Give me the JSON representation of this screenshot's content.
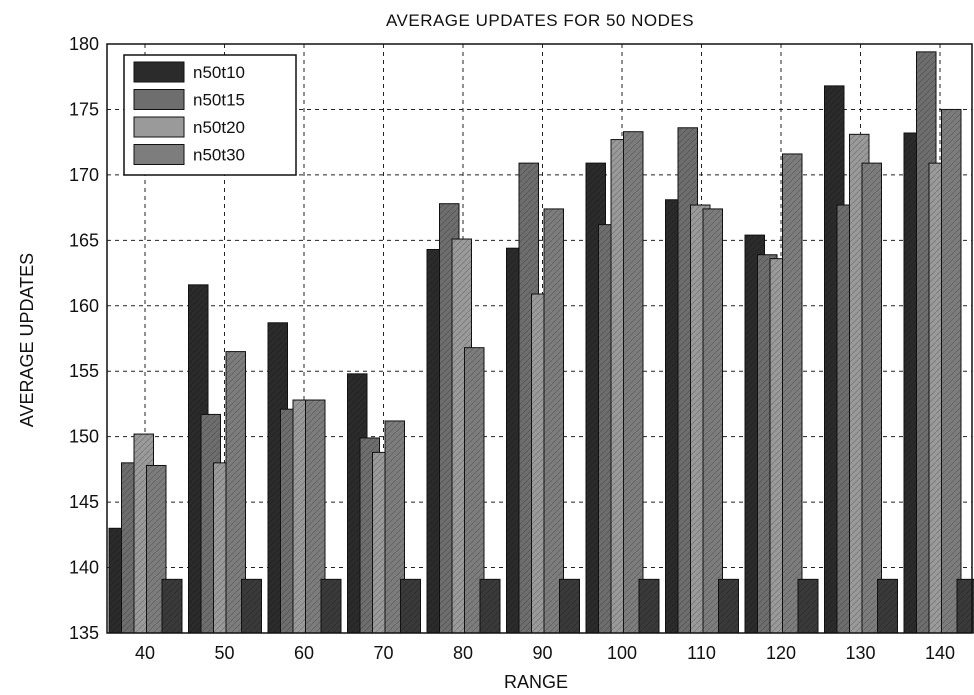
{
  "chart_data": {
    "type": "bar",
    "title": "AVERAGE  UPDATES FOR 50 NODES",
    "xlabel": "RANGE",
    "ylabel": "AVERAGE UPDATES",
    "categories": [
      "40",
      "50",
      "60",
      "70",
      "80",
      "90",
      "100",
      "110",
      "120",
      "130",
      "140"
    ],
    "ylim": [
      135,
      180
    ],
    "yticks": [
      "135",
      "140",
      "145",
      "150",
      "155",
      "160",
      "165",
      "170",
      "175",
      "180"
    ],
    "grid": true,
    "legend_position": "top-left",
    "series": [
      {
        "name": "n50t10",
        "color": "#2b2b2b",
        "values": [
          143.0,
          161.6,
          158.7,
          154.8,
          164.3,
          164.4,
          170.9,
          168.1,
          165.4,
          176.8,
          173.2
        ]
      },
      {
        "name": "n50t15",
        "color": "#6e6e6e",
        "values": [
          148.0,
          151.7,
          152.1,
          149.9,
          167.8,
          170.9,
          166.2,
          173.6,
          163.9,
          167.7,
          179.4
        ]
      },
      {
        "name": "n50t20",
        "color": "#9a9a9a",
        "values": [
          150.2,
          148.0,
          152.8,
          148.8,
          165.1,
          160.9,
          172.7,
          167.7,
          163.6,
          173.1,
          170.9
        ]
      },
      {
        "name": "n50t30",
        "color": "#7d7d7d",
        "values": [
          147.8,
          156.5,
          152.8,
          151.2,
          156.8,
          167.4,
          173.3,
          167.4,
          171.6,
          170.9,
          175.0
        ]
      },
      {
        "name": "",
        "color": "#3a3a3a",
        "values": [
          139.1,
          139.1,
          139.1,
          139.1,
          139.1,
          139.1,
          139.1,
          139.1,
          139.1,
          139.1,
          139.1
        ]
      }
    ]
  }
}
